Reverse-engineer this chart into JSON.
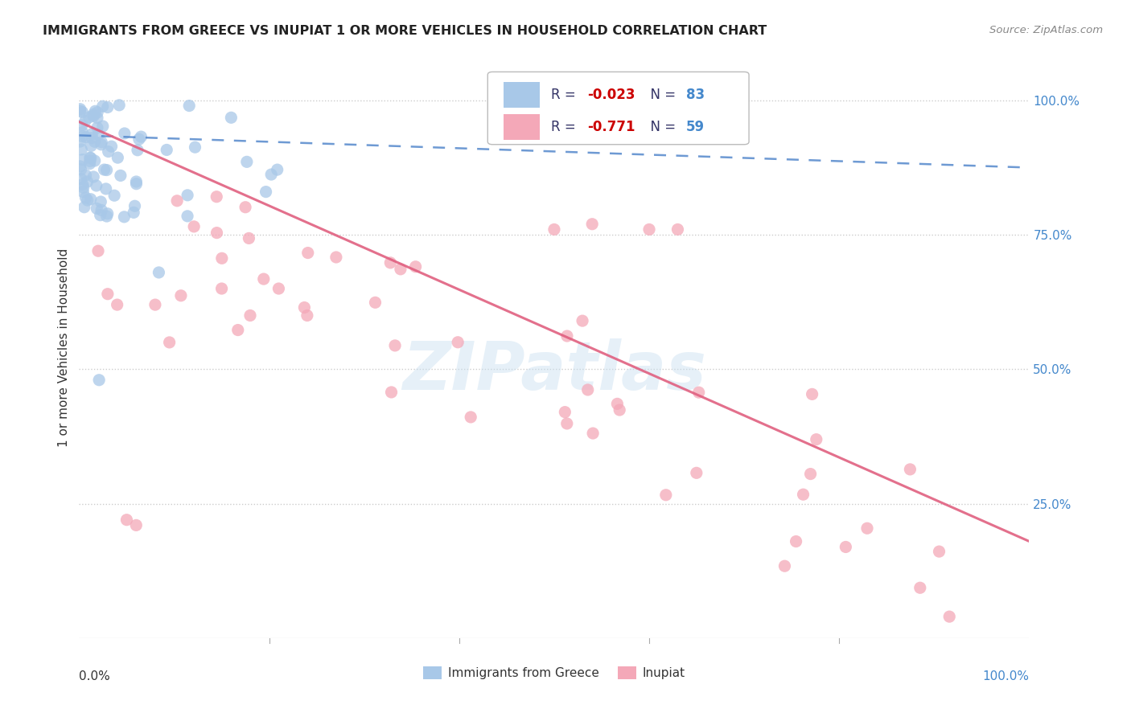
{
  "title": "IMMIGRANTS FROM GREECE VS INUPIAT 1 OR MORE VEHICLES IN HOUSEHOLD CORRELATION CHART",
  "source": "Source: ZipAtlas.com",
  "ylabel": "1 or more Vehicles in Household",
  "legend_label1": "Immigrants from Greece",
  "legend_label2": "Inupiat",
  "r1": -0.023,
  "n1": 83,
  "r2": -0.771,
  "n2": 59,
  "color1": "#a8c8e8",
  "color2": "#f4a8b8",
  "trendline1_color": "#5588cc",
  "trendline2_color": "#e06080",
  "watermark": "ZIPatlas",
  "title_color": "#222222",
  "source_color": "#888888",
  "label_color": "#333333",
  "right_tick_color": "#4488cc",
  "legend_r_color": "#cc0000",
  "legend_n_color": "#4488cc",
  "legend_text_color": "#333366",
  "grid_color": "#cccccc"
}
